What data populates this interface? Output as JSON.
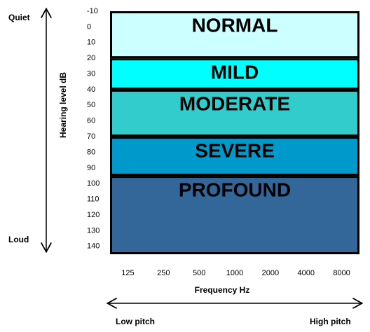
{
  "chart_data": {
    "type": "bands",
    "y_top_label": "Quiet",
    "y_bottom_label": "Loud",
    "y_axis_label": "Hearing level dB",
    "x_axis_label": "Frequency Hz",
    "x_left_label": "Low pitch",
    "x_right_label": "High pitch",
    "categories": [
      "125",
      "250",
      "500",
      "1000",
      "2000",
      "4000",
      "8000"
    ],
    "ylim": [
      -10,
      145
    ],
    "yticks": [
      -10,
      0,
      10,
      20,
      30,
      40,
      50,
      60,
      70,
      80,
      90,
      100,
      110,
      120,
      130,
      140
    ],
    "bands": [
      {
        "name": "NORMAL",
        "from": -10,
        "to": 20,
        "color": "#ccffff"
      },
      {
        "name": "MILD",
        "from": 20,
        "to": 40,
        "color": "#00ffff"
      },
      {
        "name": "MODERATE",
        "from": 40,
        "to": 70,
        "color": "#33cccc"
      },
      {
        "name": "SEVERE",
        "from": 70,
        "to": 95,
        "color": "#0099cc"
      },
      {
        "name": "PROFOUND",
        "from": 95,
        "to": 145,
        "color": "#336699"
      }
    ]
  }
}
